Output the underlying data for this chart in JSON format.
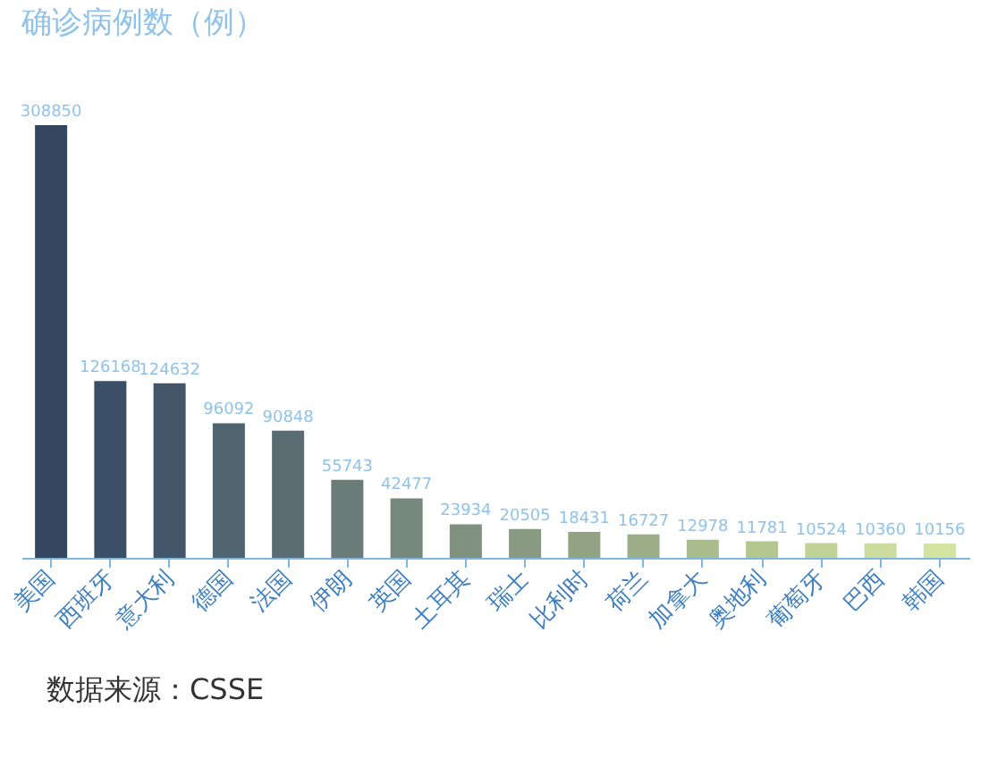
{
  "chart_data": {
    "type": "bar",
    "title": "确诊病例数（例）",
    "categories": [
      "美国",
      "西班牙",
      "意大利",
      "德国",
      "法国",
      "伊朗",
      "英国",
      "土耳其",
      "瑞士",
      "比利时",
      "荷兰",
      "加拿大",
      "奥地利",
      "葡萄牙",
      "巴西",
      "韩国"
    ],
    "values": [
      308850,
      126168,
      124632,
      96092,
      90848,
      55743,
      42477,
      23934,
      20505,
      18431,
      16727,
      12978,
      11781,
      10524,
      10360,
      10156
    ],
    "colors": [
      "#34475f",
      "#3b4f66",
      "#44576a",
      "#506470",
      "#5a6b72",
      "#6a7b78",
      "#76877b",
      "#7f907f",
      "#889a82",
      "#91a383",
      "#9bae88",
      "#a9bc8e",
      "#b4c690",
      "#c0d296",
      "#cbdc9c",
      "#d4e4a0"
    ],
    "data_labels": true,
    "annotations": [
      "数据来源：CSSE"
    ]
  }
}
